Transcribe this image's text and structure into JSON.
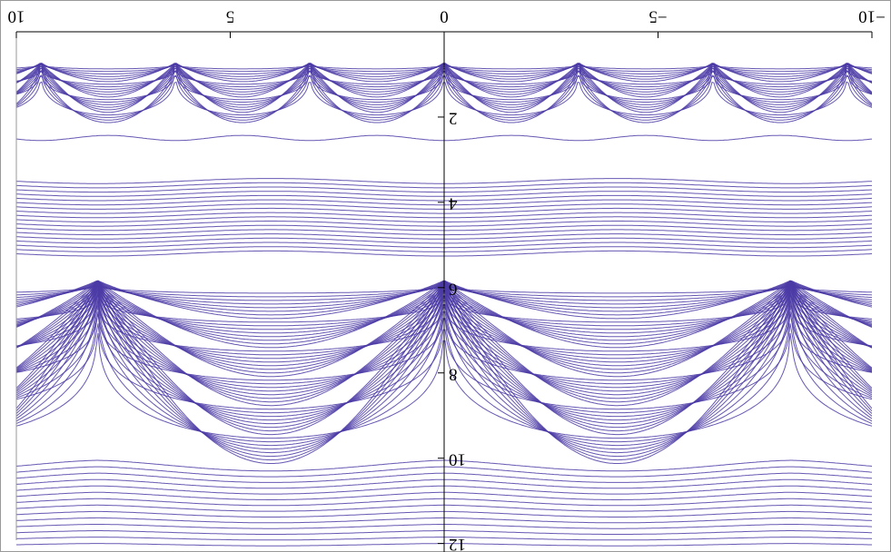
{
  "chart_data": {
    "type": "contour",
    "xlim": [
      -10,
      10
    ],
    "ylim": [
      0,
      12.2
    ],
    "xticks": [
      {
        "value": -10,
        "label": "−10"
      },
      {
        "value": -5,
        "label": "−5"
      },
      0,
      5,
      10
    ],
    "yticks": [
      2,
      4,
      6,
      8,
      10,
      12
    ],
    "color": "#4b3ba6"
  }
}
